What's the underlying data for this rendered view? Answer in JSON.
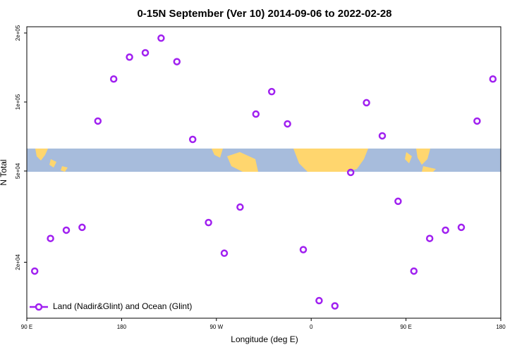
{
  "chart_data": {
    "type": "scatter",
    "title": "0-15N September (Ver 10)   2014-09-06 to 2022-02-28",
    "x_label": "Longitude (deg E)",
    "y_label": "N Total",
    "yscale": "log",
    "xlim": [
      90,
      540
    ],
    "ylim": [
      11400,
      213000
    ],
    "xticks": [
      {
        "value": 90,
        "label": "90 E"
      },
      {
        "value": 180,
        "label": "180"
      },
      {
        "value": 270,
        "label": "90 W"
      },
      {
        "value": 360,
        "label": "0"
      },
      {
        "value": 450,
        "label": "90 E"
      },
      {
        "value": 540,
        "label": "180"
      }
    ],
    "yticks": [
      {
        "value": 20000,
        "label": "2e+04"
      },
      {
        "value": 50000,
        "label": "5e+04"
      },
      {
        "value": 100000,
        "label": "1e+05"
      },
      {
        "value": 200000,
        "label": "2e+05"
      }
    ],
    "legend_position": "lower left",
    "series": [
      {
        "name": "Land (Nadir&Glint) and Ocean (Glint)",
        "color": "#a020f0",
        "x": [
          97.5,
          112.5,
          127.5,
          142.5,
          157.5,
          172.5,
          187.5,
          202.5,
          217.5,
          232.5,
          247.5,
          262.5,
          277.5,
          292.5,
          307.5,
          322.5,
          337.5,
          352.5,
          367.5,
          382.5,
          397.5,
          412.5,
          427.5,
          442.5,
          457.5,
          472.5,
          487.5,
          502.5,
          517.5,
          532.5
        ],
        "values": [
          18300,
          25400,
          27600,
          28400,
          82600,
          126000,
          157000,
          164000,
          190000,
          150000,
          68700,
          29800,
          21900,
          34800,
          88600,
          111000,
          80300,
          22700,
          13600,
          12900,
          49300,
          99300,
          71200,
          36900,
          18300,
          25400,
          27600,
          28400,
          82600,
          126000
        ]
      }
    ]
  }
}
